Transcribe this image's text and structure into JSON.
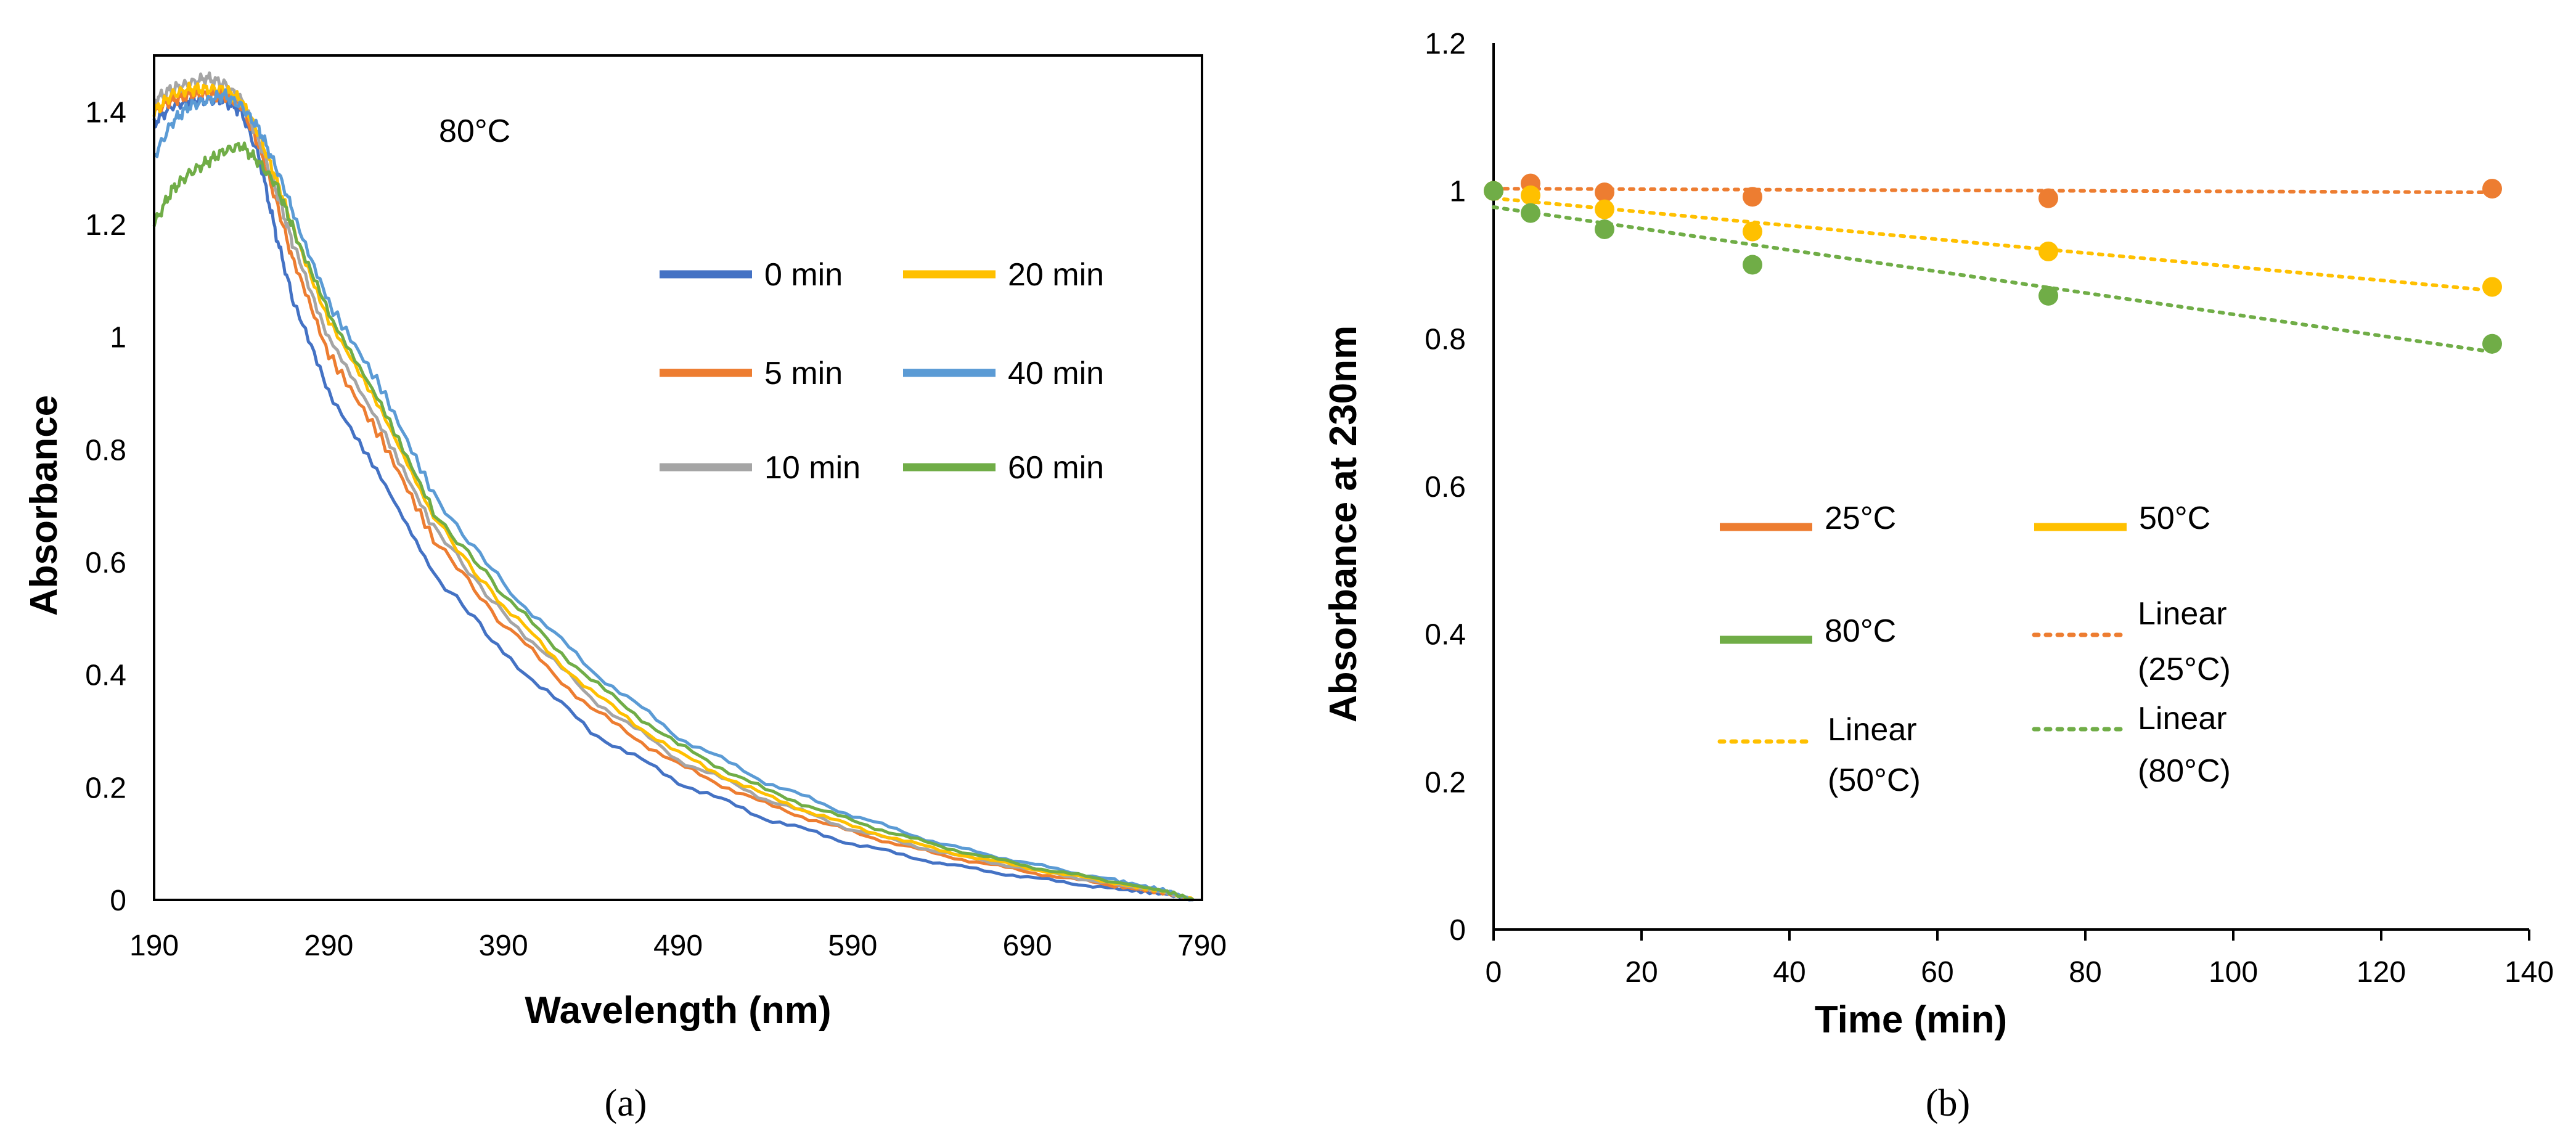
{
  "figure": {
    "panel_a_label": "(a)",
    "panel_b_label": "(b)"
  },
  "chart_data": [
    {
      "type": "line",
      "annotation": "80°C",
      "xlabel": "Wavelength  (nm)",
      "ylabel": "Absorbance",
      "xlim": [
        190,
        790
      ],
      "ylim": [
        0,
        1.5
      ],
      "xticks": [
        "190",
        "290",
        "390",
        "490",
        "590",
        "690",
        "790"
      ],
      "yticks": [
        "0",
        "0.2",
        "0.4",
        "0.6",
        "0.8",
        "1",
        "1.2",
        "1.4"
      ],
      "grid": false,
      "legend_position": "center-right",
      "series": [
        {
          "name": "0 min",
          "color": "#4472C4",
          "x": [
            190,
            200,
            210,
            220,
            230,
            240,
            250,
            260,
            270,
            290,
            320,
            350,
            390,
            440,
            490,
            540,
            590,
            640,
            690,
            740,
            770,
            785
          ],
          "y": [
            1.38,
            1.41,
            1.42,
            1.42,
            1.42,
            1.4,
            1.32,
            1.18,
            1.06,
            0.9,
            0.75,
            0.58,
            0.44,
            0.3,
            0.21,
            0.145,
            0.1,
            0.065,
            0.04,
            0.02,
            0.01,
            0.0
          ]
        },
        {
          "name": "5 min",
          "color": "#ED7D31",
          "x": [
            190,
            200,
            210,
            220,
            230,
            240,
            250,
            260,
            270,
            290,
            320,
            350,
            390,
            440,
            490,
            540,
            590,
            640,
            690,
            740,
            770,
            785
          ],
          "y": [
            1.4,
            1.42,
            1.43,
            1.43,
            1.43,
            1.41,
            1.34,
            1.24,
            1.13,
            0.97,
            0.82,
            0.64,
            0.49,
            0.34,
            0.24,
            0.17,
            0.12,
            0.08,
            0.05,
            0.025,
            0.012,
            0.0
          ]
        },
        {
          "name": "10 min",
          "color": "#A5A5A5",
          "x": [
            190,
            200,
            210,
            220,
            230,
            240,
            250,
            260,
            270,
            290,
            320,
            350,
            390,
            440,
            490,
            540,
            590,
            640,
            690,
            740,
            770,
            785
          ],
          "y": [
            1.42,
            1.44,
            1.45,
            1.46,
            1.45,
            1.42,
            1.35,
            1.26,
            1.16,
            1.0,
            0.84,
            0.66,
            0.51,
            0.36,
            0.25,
            0.18,
            0.125,
            0.085,
            0.055,
            0.028,
            0.013,
            0.0
          ]
        },
        {
          "name": "20 min",
          "color": "#FFC000",
          "x": [
            190,
            200,
            210,
            220,
            230,
            240,
            250,
            260,
            270,
            290,
            320,
            350,
            390,
            440,
            490,
            540,
            590,
            640,
            690,
            740,
            770,
            785
          ],
          "y": [
            1.4,
            1.43,
            1.44,
            1.44,
            1.44,
            1.42,
            1.36,
            1.28,
            1.19,
            1.03,
            0.87,
            0.68,
            0.52,
            0.37,
            0.26,
            0.185,
            0.13,
            0.088,
            0.057,
            0.03,
            0.014,
            0.0
          ]
        },
        {
          "name": "40 min",
          "color": "#5B9BD5",
          "x": [
            190,
            200,
            210,
            220,
            230,
            240,
            250,
            260,
            270,
            290,
            320,
            350,
            390,
            440,
            490,
            540,
            590,
            640,
            690,
            740,
            770,
            785
          ],
          "y": [
            1.32,
            1.38,
            1.41,
            1.42,
            1.43,
            1.41,
            1.37,
            1.3,
            1.22,
            1.06,
            0.91,
            0.72,
            0.56,
            0.41,
            0.29,
            0.21,
            0.15,
            0.1,
            0.065,
            0.035,
            0.016,
            0.0
          ]
        },
        {
          "name": "60 min",
          "color": "#70AD47",
          "x": [
            190,
            200,
            210,
            220,
            230,
            240,
            250,
            260,
            270,
            290,
            320,
            350,
            390,
            440,
            490,
            540,
            590,
            640,
            690,
            740,
            770,
            785
          ],
          "y": [
            1.2,
            1.26,
            1.29,
            1.31,
            1.33,
            1.34,
            1.31,
            1.27,
            1.19,
            1.04,
            0.88,
            0.69,
            0.54,
            0.39,
            0.275,
            0.195,
            0.14,
            0.095,
            0.06,
            0.032,
            0.015,
            0.0
          ]
        }
      ]
    },
    {
      "type": "scatter",
      "xlabel": "Time (min)",
      "ylabel": "Absorbance  at 230nm",
      "xlim": [
        0,
        140
      ],
      "ylim": [
        0,
        1.2
      ],
      "xticks": [
        "0",
        "20",
        "40",
        "60",
        "80",
        "100",
        "120",
        "140"
      ],
      "yticks": [
        "0",
        "0.2",
        "0.4",
        "0.6",
        "0.8",
        "1",
        "1.2"
      ],
      "grid": false,
      "legend_position": "center",
      "series": [
        {
          "name": "25°C",
          "color": "#ED7D31",
          "x": [
            0,
            5,
            15,
            35,
            75,
            135
          ],
          "y": [
            1.0,
            1.01,
            0.998,
            0.992,
            0.99,
            1.003
          ]
        },
        {
          "name": "50°C",
          "color": "#FFC000",
          "x": [
            0,
            5,
            15,
            35,
            75,
            135
          ],
          "y": [
            1.0,
            0.994,
            0.975,
            0.945,
            0.918,
            0.87
          ]
        },
        {
          "name": "80°C",
          "color": "#70AD47",
          "x": [
            0,
            5,
            15,
            35,
            75,
            135
          ],
          "y": [
            1.0,
            0.97,
            0.948,
            0.9,
            0.858,
            0.793
          ]
        }
      ],
      "trendlines": [
        {
          "name": "Linear (25°C)",
          "name_lines": [
            "Linear",
            "(25°C)"
          ],
          "color": "#ED7D31",
          "x": [
            0,
            135
          ],
          "y": [
            1.003,
            0.998
          ]
        },
        {
          "name": "Linear (50°C)",
          "name_lines": [
            "Linear",
            "(50°C)"
          ],
          "color": "#FFC000",
          "x": [
            0,
            135
          ],
          "y": [
            0.99,
            0.865
          ]
        },
        {
          "name": "Linear (80°C)",
          "name_lines": [
            "Linear",
            "(80°C)"
          ],
          "color": "#70AD47",
          "x": [
            0,
            135
          ],
          "y": [
            0.978,
            0.782
          ]
        }
      ]
    }
  ]
}
